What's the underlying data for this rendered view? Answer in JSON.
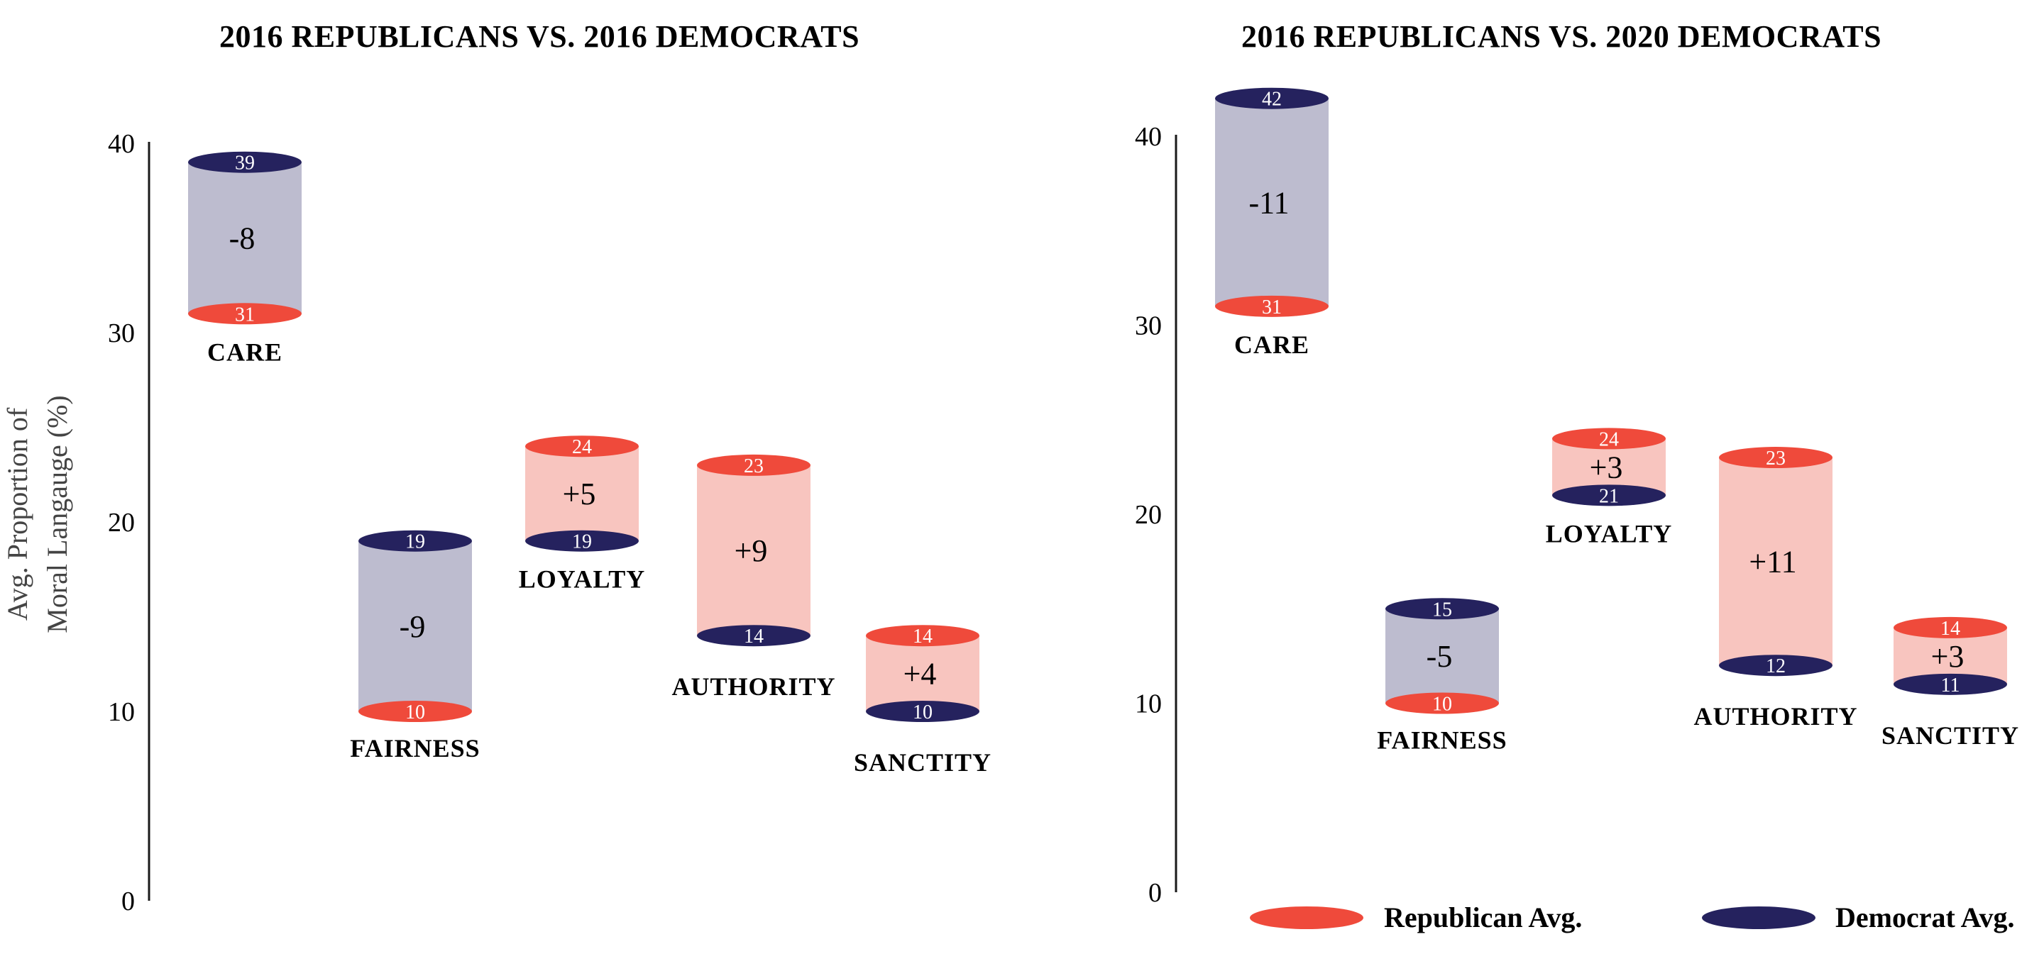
{
  "colors": {
    "republican": "#ef4a3b",
    "democrat": "#25225e",
    "rep_higher_fill": "#f8c5bf",
    "dem_higher_fill": "#bdbccf",
    "axis": "#1a1a1a"
  },
  "y_axis_label_line1": "Avg. Proportion of",
  "y_axis_label_line2": "Moral Langauge (%)",
  "legend": {
    "republican_label": "Republican Avg.",
    "democrat_label": "Democrat Avg."
  },
  "chart_data": [
    {
      "type": "floating-bar",
      "title": "2016 REPUBLICANS VS. 2016 DEMOCRATS",
      "ylim": [
        0,
        40
      ],
      "yticks": [
        0,
        10,
        20,
        30,
        40
      ],
      "categories": [
        "CARE",
        "FAIRNESS",
        "LOYALTY",
        "AUTHORITY",
        "SANCTITY"
      ],
      "series": [
        {
          "name": "Republican Avg.",
          "values": [
            31,
            10,
            24,
            23,
            14
          ]
        },
        {
          "name": "Democrat Avg.",
          "values": [
            39,
            19,
            19,
            14,
            10
          ]
        }
      ],
      "differences": [
        "-8",
        "-9",
        "+5",
        "+9",
        "+4"
      ]
    },
    {
      "type": "floating-bar",
      "title": "2016 REPUBLICANS VS. 2020 DEMOCRATS",
      "ylim": [
        0,
        40
      ],
      "yticks": [
        0,
        10,
        20,
        30,
        40
      ],
      "categories": [
        "CARE",
        "FAIRNESS",
        "LOYALTY",
        "AUTHORITY",
        "SANCTITY"
      ],
      "series": [
        {
          "name": "Republican Avg.",
          "values": [
            31,
            10,
            24,
            23,
            14
          ]
        },
        {
          "name": "Democrat Avg.",
          "values": [
            42,
            15,
            21,
            12,
            11
          ]
        }
      ],
      "differences": [
        "-11",
        "-5",
        "+3",
        "+11",
        "+3"
      ]
    }
  ]
}
